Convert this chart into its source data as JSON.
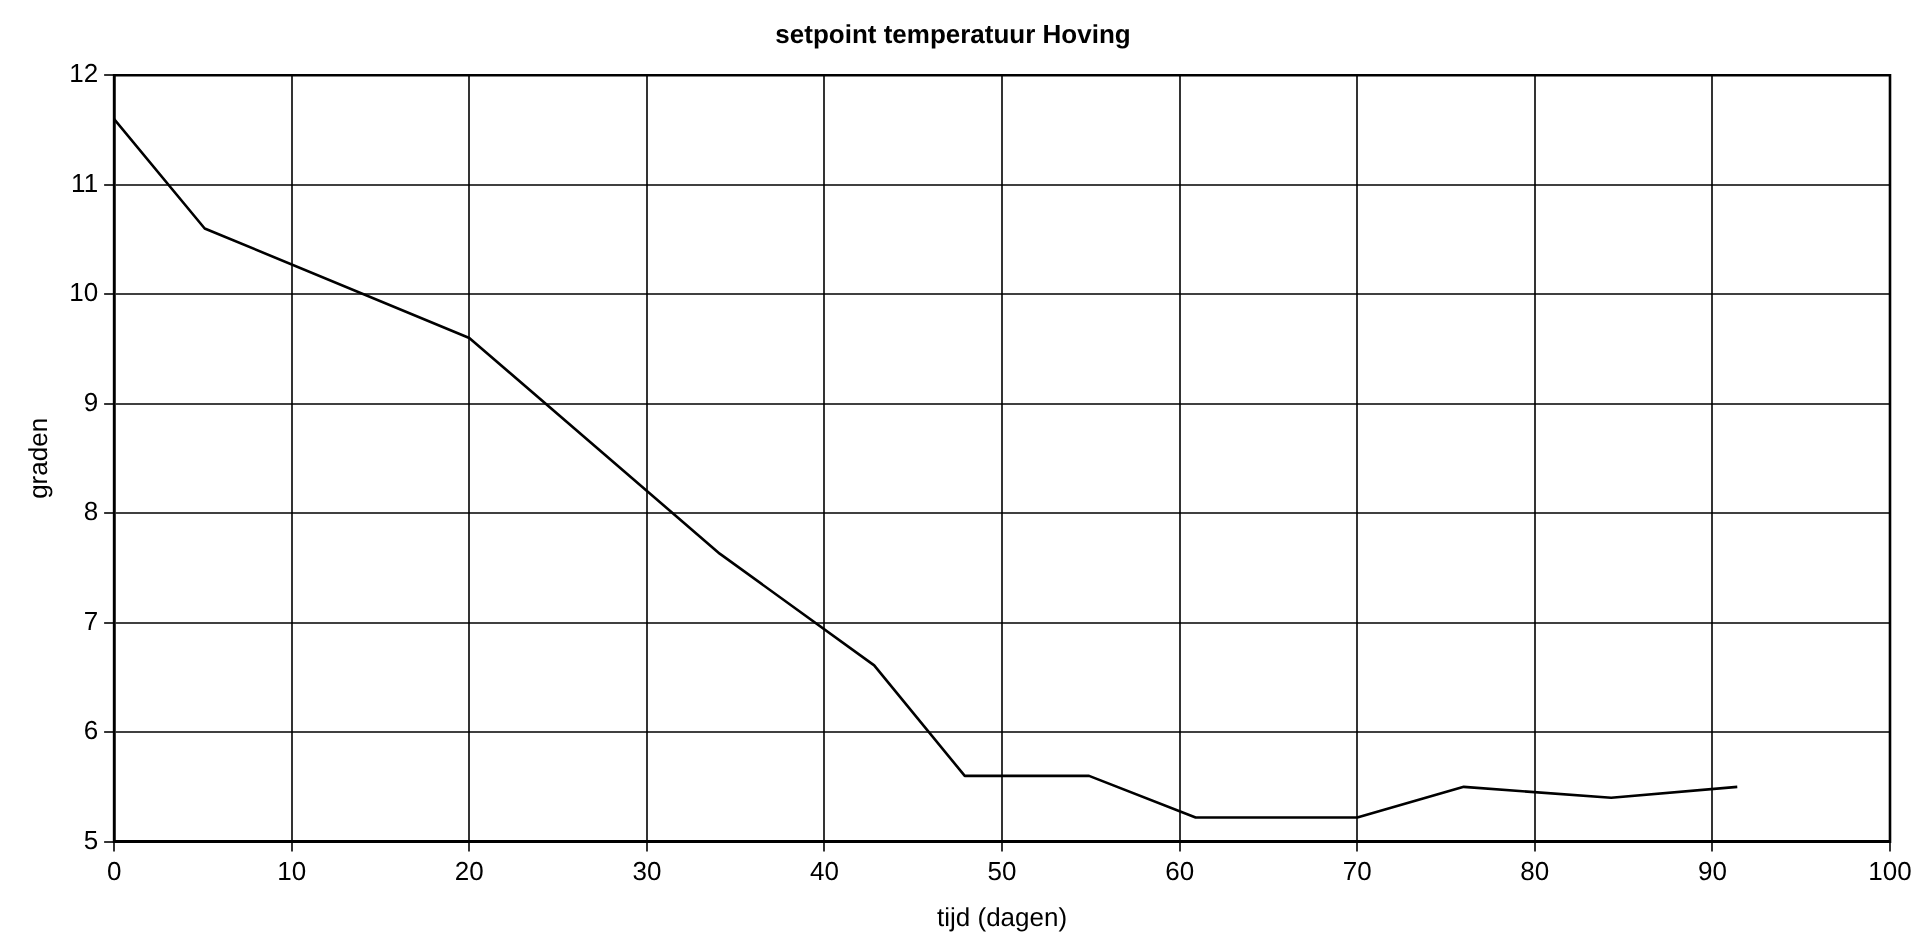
{
  "chart_data": {
    "type": "line",
    "title": "setpoint temperatuur Hoving",
    "xlabel": "tijd (dagen)",
    "ylabel": "graden",
    "x": [
      0,
      5.1,
      20,
      34.1,
      42.8,
      47.9,
      54.9,
      60.9,
      70,
      76,
      84.3,
      91.4
    ],
    "values": [
      11.6,
      10.6,
      9.6,
      7.63,
      6.61,
      5.6,
      5.6,
      5.22,
      5.22,
      5.5,
      5.4,
      5.5
    ],
    "color": "#000000",
    "xlim": [
      0,
      100
    ],
    "xticks": [
      0,
      10,
      20,
      30,
      40,
      50,
      60,
      70,
      80,
      90,
      100
    ],
    "ylim": [
      5,
      12
    ],
    "yticks": [
      5,
      6,
      7,
      8,
      9,
      10,
      11,
      12
    ],
    "grid": true,
    "marker": "none",
    "line_style": "solid"
  }
}
